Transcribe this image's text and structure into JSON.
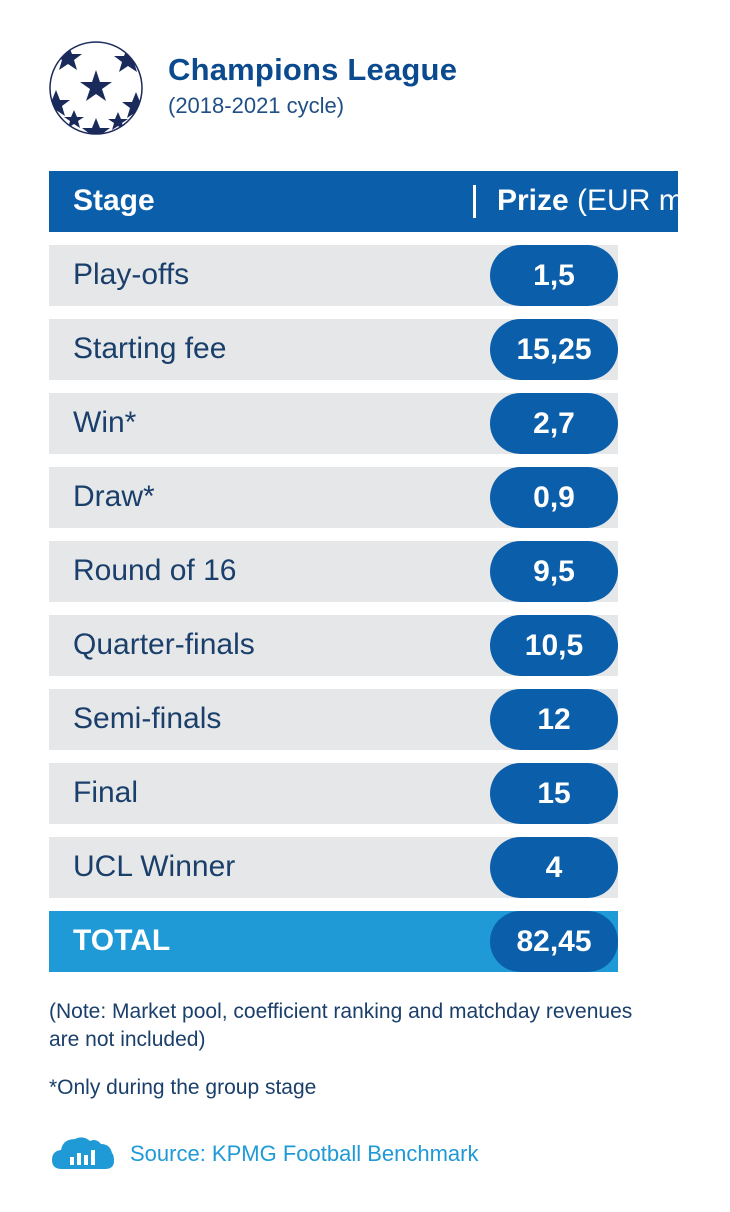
{
  "header": {
    "title": "Champions League",
    "subtitle": "(2018-2021 cycle)"
  },
  "table": {
    "col_stage": "Stage",
    "col_prize_bold": "Prize",
    "col_prize_unit": " (EUR m)",
    "rows": [
      {
        "stage": "Play-offs",
        "prize": "1,5"
      },
      {
        "stage": "Starting fee",
        "prize": "15,25"
      },
      {
        "stage": "Win*",
        "prize": "2,7"
      },
      {
        "stage": "Draw*",
        "prize": "0,9"
      },
      {
        "stage": "Round of 16",
        "prize": "9,5"
      },
      {
        "stage": "Quarter-finals",
        "prize": "10,5"
      },
      {
        "stage": "Semi-finals",
        "prize": "12"
      },
      {
        "stage": "Final",
        "prize": "15"
      },
      {
        "stage": "UCL Winner",
        "prize": "4"
      }
    ],
    "total_label": "TOTAL",
    "total_value": "82,45"
  },
  "notes": {
    "note": "(Note: Market pool, coefficient ranking and matchday revenues are not included)",
    "footnote": "*Only during the group stage",
    "source": "Source: KPMG Football Benchmark"
  },
  "icons": {
    "logo": "starball-logo-icon",
    "source": "cloud-bar-chart-icon"
  },
  "colors": {
    "dark_blue": "#0a5eaa",
    "light_blue": "#1f9ad7",
    "row_grey": "#e6e7e8"
  }
}
